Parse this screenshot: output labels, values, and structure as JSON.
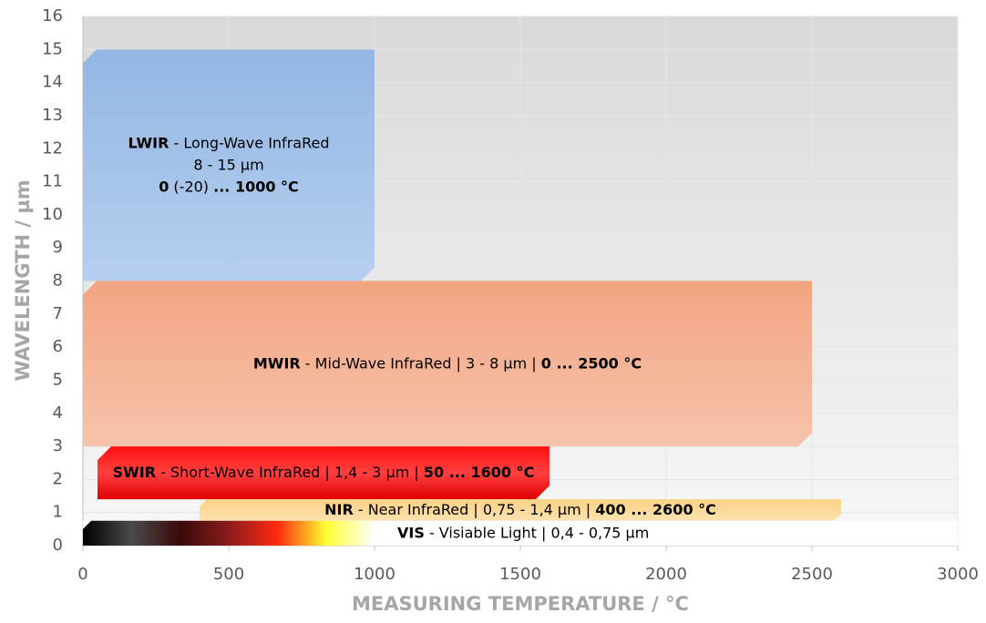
{
  "chart_data": {
    "type": "range",
    "x_label": "MEASURING TEMPERATURE / °C",
    "y_label": "WAVELENGTH / µm",
    "xlim": [
      0,
      3000
    ],
    "xticks": [
      0,
      500,
      1000,
      1500,
      2000,
      2500,
      3000
    ],
    "ylim": [
      0,
      16
    ],
    "yticks": [
      0,
      1,
      2,
      3,
      4,
      5,
      6,
      7,
      8,
      9,
      10,
      11,
      12,
      13,
      14,
      15,
      16
    ],
    "grid": true,
    "bands": [
      {
        "xrange": [
          0,
          1000
        ],
        "yrange": [
          8,
          15
        ],
        "colors": [
          "#93b6e2",
          "#b6cfef"
        ],
        "gradient": "vertical",
        "lines": [
          [
            {
              "text": "LWIR",
              "bold": true
            },
            {
              "text": " - Long-Wave InfraRed"
            }
          ],
          [
            {
              "text": "8 - 15 µm"
            }
          ],
          [
            {
              "text": "0",
              "bold": true
            },
            {
              "text": " (-20) "
            },
            {
              "text": "... 1000 °C",
              "bold": true
            }
          ]
        ]
      },
      {
        "xrange": [
          0,
          2500
        ],
        "yrange": [
          3,
          8
        ],
        "colors": [
          "#f3a481",
          "#f6c3ac"
        ],
        "gradient": "vertical",
        "lines": [
          [
            {
              "text": "MWIR",
              "bold": true
            },
            {
              "text": " - Mid-Wave InfraRed | 3 - 8 µm | "
            },
            {
              "text": "0 ... 2500 °C",
              "bold": true
            }
          ]
        ]
      },
      {
        "xrange": [
          50,
          1600
        ],
        "yrange": [
          1.4,
          3
        ],
        "colors": [
          "#ff1010",
          "#ff4040",
          "#e00000"
        ],
        "gradient": "vertical",
        "lines": [
          [
            {
              "text": "SWIR",
              "bold": true
            },
            {
              "text": " - Short-Wave InfraRed | 1,4 - 3 µm | "
            },
            {
              "text": "50 ... 1600 °C",
              "bold": true
            }
          ]
        ]
      },
      {
        "xrange": [
          400,
          2600
        ],
        "yrange": [
          0.75,
          1.4
        ],
        "colors": [
          "#fcd185",
          "#fde2ae"
        ],
        "gradient": "vertical",
        "lines": [
          [
            {
              "text": "NIR",
              "bold": true
            },
            {
              "text": " - Near InfraRed | 0,75 - 1,4 µm | "
            },
            {
              "text": "400 ... 2600 °C",
              "bold": true
            }
          ]
        ]
      },
      {
        "xrange": [
          0,
          1000
        ],
        "yrange": [
          0,
          0.75
        ],
        "colors": [
          "#000000",
          "#4a4a4a",
          "#3a0a0a",
          "#8a1c1c",
          "#ff2a10",
          "#ffff30",
          "#ffffff"
        ],
        "gradient": "horizontal",
        "label_position": "right",
        "label_color": "#8c8c8c",
        "lines": [
          [
            {
              "text": "VIS",
              "bold": true
            },
            {
              "text": " - Visiable Light | 0,4 - 0,75 µm"
            }
          ]
        ]
      }
    ]
  }
}
